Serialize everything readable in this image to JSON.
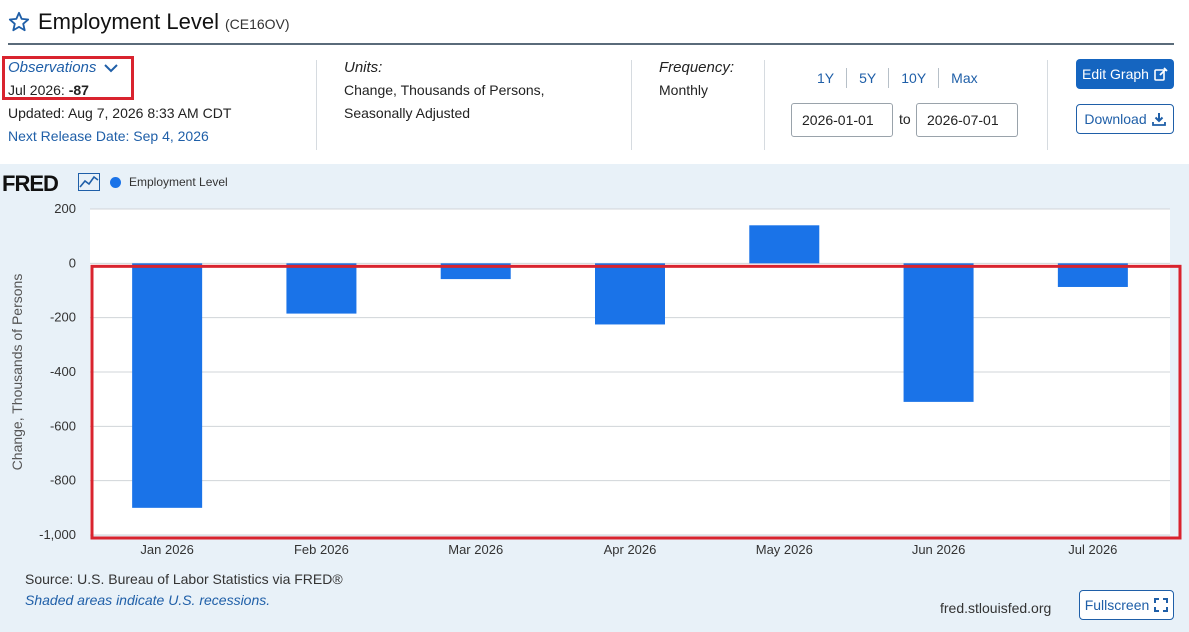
{
  "header": {
    "title": "Employment Level",
    "series_id": "(CE16OV)"
  },
  "observations": {
    "label": "Observations",
    "date": "Jul 2026:",
    "value": "-87",
    "updated": "Updated: Aug 7, 2026 8:33 AM CDT",
    "next_release": "Next Release Date: Sep 4, 2026"
  },
  "units": {
    "label": "Units:",
    "line1": "Change, Thousands of Persons,",
    "line2": "Seasonally Adjusted"
  },
  "frequency": {
    "label": "Frequency:",
    "value": "Monthly"
  },
  "range": {
    "tabs": [
      "1Y",
      "5Y",
      "10Y",
      "Max"
    ],
    "start": "2026-01-01",
    "to": "to",
    "end": "2026-07-01"
  },
  "buttons": {
    "edit_graph": "Edit Graph",
    "download": "Download",
    "fullscreen": "Fullscreen"
  },
  "brand": {
    "logo": "FRED"
  },
  "footer": {
    "source": "Source: U.S. Bureau of Labor Statistics via FRED®",
    "shaded": "Shaded areas indicate U.S. recessions.",
    "url": "fred.stlouisfed.org"
  },
  "colors": {
    "bar": "#1a73e8",
    "highlight": "#d9232e",
    "panel": "#e8f1f8"
  },
  "chart_data": {
    "type": "bar",
    "categories": [
      "Jan 2026",
      "Feb 2026",
      "Mar 2026",
      "Apr 2026",
      "May 2026",
      "Jun 2026",
      "Jul 2026"
    ],
    "series": [
      {
        "name": "Employment Level",
        "values": [
          -900,
          -185,
          -58,
          -225,
          140,
          -510,
          -87
        ]
      }
    ],
    "ylabel": "Change, Thousands of Persons",
    "ylim": [
      -1000,
      200
    ],
    "yticks": [
      200,
      0,
      -200,
      -400,
      -600,
      -800,
      -1000
    ],
    "ytick_labels": [
      "200",
      "0",
      "-200",
      "-400",
      "-600",
      "-800",
      "-1,000"
    ],
    "grid": true,
    "legend": "top-left"
  }
}
